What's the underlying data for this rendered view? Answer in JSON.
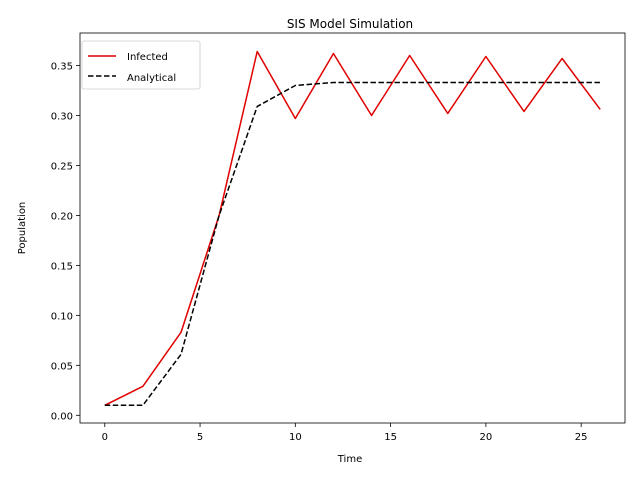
{
  "chart_data": {
    "type": "line",
    "title": "SIS Model Simulation",
    "xlabel": "Time",
    "ylabel": "Population",
    "xlim": [
      -1.3,
      27.3
    ],
    "ylim": [
      -0.0077,
      0.3825
    ],
    "xticks": [
      0,
      5,
      10,
      15,
      20,
      25
    ],
    "yticks": [
      0.0,
      0.05,
      0.1,
      0.15,
      0.2,
      0.25,
      0.3,
      0.35
    ],
    "xtick_labels": [
      "0",
      "5",
      "10",
      "15",
      "20",
      "25"
    ],
    "ytick_labels": [
      "0.00",
      "0.05",
      "0.10",
      "0.15",
      "0.20",
      "0.25",
      "0.30",
      "0.35"
    ],
    "grid": false,
    "legend_position": "top-left",
    "series": [
      {
        "name": "Infected",
        "color": "#e00000",
        "style": "solid",
        "x": [
          0,
          2,
          4,
          6,
          8,
          10,
          12,
          14,
          16,
          18,
          20,
          22,
          24,
          26
        ],
        "y": [
          0.01,
          0.029,
          0.083,
          0.2,
          0.364,
          0.297,
          0.362,
          0.3,
          0.36,
          0.302,
          0.359,
          0.304,
          0.357,
          0.306
        ]
      },
      {
        "name": "Analytical",
        "color": "#000000",
        "style": "dashed",
        "x": [
          0,
          2,
          4,
          6,
          8,
          10,
          12,
          14,
          16,
          18,
          20,
          22,
          24,
          26
        ],
        "y": [
          0.01,
          0.01,
          0.061,
          0.2,
          0.309,
          0.33,
          0.333,
          0.333,
          0.333,
          0.333,
          0.333,
          0.333,
          0.333,
          0.333
        ]
      }
    ]
  }
}
